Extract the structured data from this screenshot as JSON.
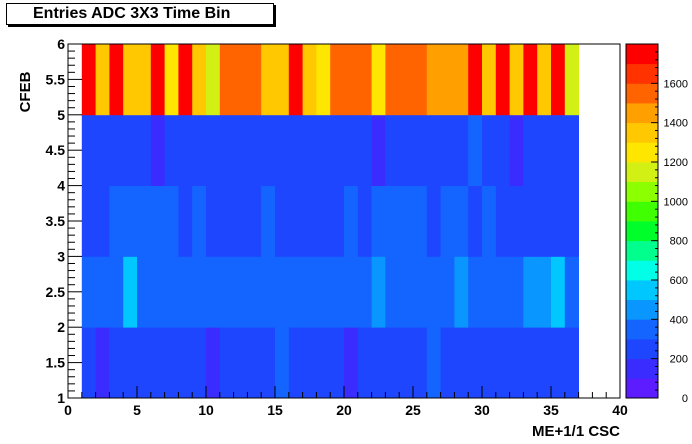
{
  "chart_data": {
    "type": "heatmap",
    "title": "Entries ADC 3X3 Time Bin",
    "xlabel": "ME+1/1 CSC",
    "ylabel": "CFEB",
    "xlim": [
      0,
      40
    ],
    "ylim": [
      1,
      6
    ],
    "zlim": [
      0,
      1800
    ],
    "x_ticks": [
      0,
      5,
      10,
      15,
      20,
      25,
      30,
      35,
      40
    ],
    "y_ticks": [
      1,
      1.5,
      2,
      2.5,
      3,
      3.5,
      4,
      4.5,
      5,
      5.5,
      6
    ],
    "z_ticks": [
      0,
      200,
      400,
      600,
      800,
      1000,
      1200,
      1400,
      1600
    ],
    "x_bins": [
      1,
      2,
      3,
      4,
      5,
      6,
      7,
      8,
      9,
      10,
      11,
      12,
      13,
      14,
      15,
      16,
      17,
      18,
      19,
      20,
      21,
      22,
      23,
      24,
      25,
      26,
      27,
      28,
      29,
      30,
      31,
      32,
      33,
      34,
      35,
      36
    ],
    "y_bins": [
      1,
      2,
      3,
      4,
      5
    ],
    "values": [
      [
        280,
        130,
        270,
        260,
        260,
        260,
        260,
        250,
        280,
        130,
        250,
        250,
        250,
        250,
        300,
        270,
        250,
        250,
        250,
        130,
        260,
        260,
        260,
        260,
        260,
        310,
        250,
        250,
        250,
        260,
        260,
        270,
        260,
        260,
        260,
        260
      ],
      [
        390,
        300,
        310,
        560,
        360,
        360,
        330,
        310,
        370,
        320,
        390,
        360,
        310,
        360,
        320,
        310,
        360,
        350,
        360,
        380,
        320,
        400,
        350,
        340,
        360,
        320,
        330,
        450,
        390,
        330,
        310,
        370,
        460,
        460,
        520,
        330
      ],
      [
        280,
        260,
        300,
        320,
        360,
        360,
        380,
        270,
        330,
        270,
        270,
        290,
        270,
        320,
        270,
        280,
        270,
        270,
        270,
        320,
        280,
        360,
        370,
        380,
        380,
        280,
        310,
        380,
        270,
        380,
        270,
        280,
        260,
        270,
        270,
        270
      ],
      [
        290,
        270,
        270,
        270,
        270,
        170,
        270,
        270,
        270,
        270,
        270,
        270,
        270,
        270,
        280,
        270,
        270,
        270,
        270,
        270,
        270,
        170,
        270,
        270,
        270,
        270,
        270,
        270,
        300,
        270,
        270,
        160,
        270,
        270,
        270,
        270
      ],
      [
        1700,
        1300,
        1800,
        1350,
        1300,
        1750,
        1250,
        1800,
        1300,
        1100,
        1500,
        1500,
        1500,
        1300,
        1350,
        1750,
        1300,
        1200,
        1550,
        1550,
        1550,
        1250,
        1500,
        1500,
        1550,
        1450,
        1450,
        1450,
        1750,
        1300,
        1750,
        1350,
        1750,
        1300,
        1700,
        1150
      ]
    ]
  }
}
